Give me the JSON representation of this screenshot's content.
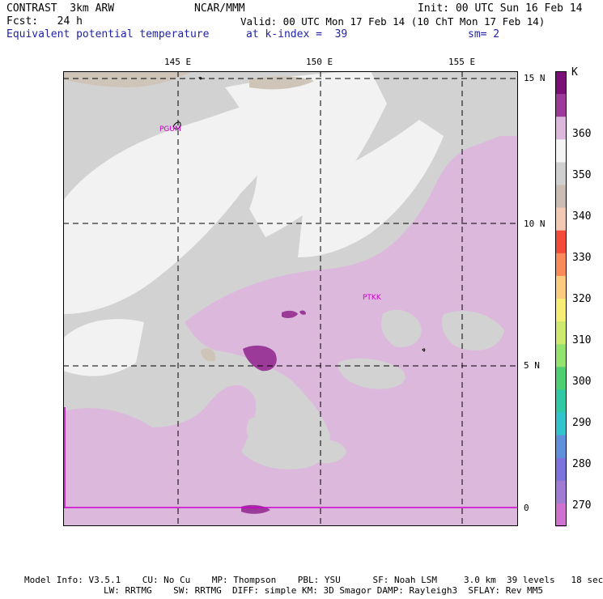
{
  "header": {
    "line1_left": "CONTRAST  3km ARW",
    "line1_mid": "NCAR/MMM",
    "line1_right": "Init: 00 UTC Sun 16 Feb 14",
    "line2_left": "Fcst:   24 h",
    "line2_right": "Valid: 00 UTC Mon 17 Feb 14 (10 ChT Mon 17 Feb 14)",
    "line3_left": "Equivalent potential temperature",
    "line3_mid": "at k-index =  39",
    "line3_right": "sm= 2"
  },
  "map": {
    "lon_labels": [
      "145 E",
      "150 E",
      "155 E"
    ],
    "lat_labels": [
      "15 N",
      "10 N",
      "5 N",
      "0"
    ],
    "stations": [
      "PGUM",
      "PTKK"
    ]
  },
  "colorbar": {
    "unit": "K",
    "labels": [
      "360",
      "350",
      "340",
      "330",
      "320",
      "310",
      "300",
      "290",
      "280",
      "270"
    ],
    "colors": [
      "#7a0f78",
      "#9b3a98",
      "#dcb9dc",
      "#f4f4f4",
      "#d0d0d0",
      "#c9bdb4",
      "#f2c9b2",
      "#f44a3a",
      "#fa8a5a",
      "#fbcc80",
      "#f6ee74",
      "#cdea6e",
      "#93e36e",
      "#4ecf72",
      "#2fc9a6",
      "#33c3cc",
      "#5f92db",
      "#7e72dc",
      "#a27cd2",
      "#cf72cf"
    ]
  },
  "footer": {
    "line1": "Model Info: V3.5.1    CU: No Cu    MP: Thompson    PBL: YSU      SF: Noah LSM     3.0 km  39 levels   18 sec",
    "line2": "LW: RRTMG    SW: RRTMG  DIFF: simple KM: 3D Smagor DAMP: Rayleigh3  SFLAY: Rev MM5"
  }
}
